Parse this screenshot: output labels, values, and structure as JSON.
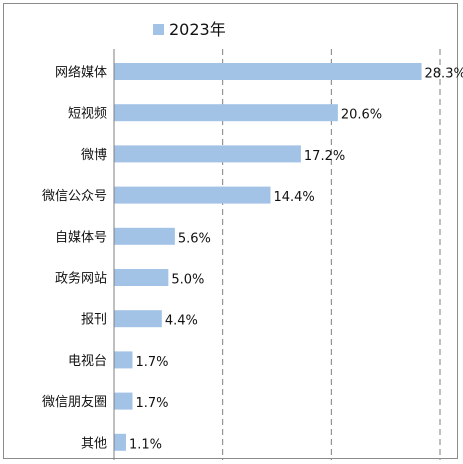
{
  "chart_data": {
    "type": "bar",
    "orientation": "horizontal",
    "categories": [
      "网络媒体",
      "短视频",
      "微博",
      "微信公众号",
      "自媒体号",
      "政务网站",
      "报刊",
      "电视台",
      "微信朋友圈",
      "其他"
    ],
    "series": [
      {
        "name": "2023年",
        "values": [
          28.3,
          20.6,
          17.2,
          14.4,
          5.6,
          5.0,
          4.4,
          1.7,
          1.7,
          1.1
        ],
        "data_labels": [
          "28.3%",
          "20.6%",
          "17.2%",
          "14.4%",
          "5.6%",
          "5.0%",
          "4.4%",
          "1.7%",
          "1.7%",
          "1.1%"
        ]
      }
    ],
    "xlim": [
      0,
      30
    ],
    "grid": "vertical dashed",
    "legend_position": "top-left",
    "colors": {
      "bar": "#a2c2e6",
      "grid": "#7f7f7f",
      "axis": "#7f7f7f"
    }
  }
}
